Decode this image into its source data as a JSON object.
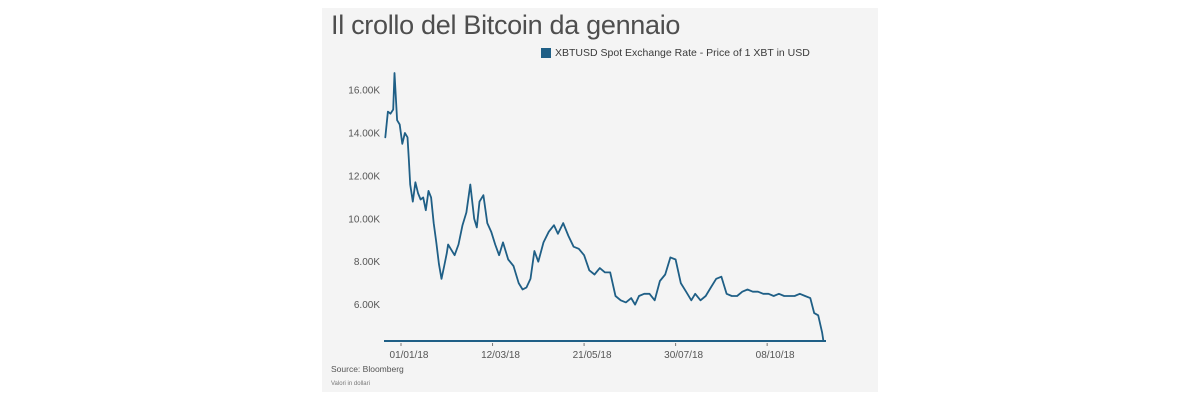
{
  "chart_data": {
    "type": "line",
    "title": "Il crollo del Bitcoin da gennaio",
    "legend_placement": "top-right",
    "series": [
      {
        "name": "XBTUSD Spot Exchange Rate - Price of 1 XBT in USD",
        "color": "#1f5f86",
        "x": [
          "2017-12-20",
          "2017-12-22",
          "2017-12-24",
          "2017-12-26",
          "2017-12-27",
          "2017-12-29",
          "2017-12-31",
          "2018-01-02",
          "2018-01-04",
          "2018-01-06",
          "2018-01-07",
          "2018-01-08",
          "2018-01-10",
          "2018-01-12",
          "2018-01-14",
          "2018-01-16",
          "2018-01-18",
          "2018-01-20",
          "2018-01-22",
          "2018-01-24",
          "2018-01-26",
          "2018-01-28",
          "2018-01-30",
          "2018-02-01",
          "2018-02-03",
          "2018-02-05",
          "2018-02-06",
          "2018-02-08",
          "2018-02-11",
          "2018-02-14",
          "2018-02-17",
          "2018-02-20",
          "2018-02-23",
          "2018-02-26",
          "2018-02-28",
          "2018-03-02",
          "2018-03-05",
          "2018-03-08",
          "2018-03-11",
          "2018-03-14",
          "2018-03-17",
          "2018-03-20",
          "2018-03-24",
          "2018-03-28",
          "2018-04-01",
          "2018-04-04",
          "2018-04-07",
          "2018-04-10",
          "2018-04-13",
          "2018-04-16",
          "2018-04-20",
          "2018-04-24",
          "2018-04-28",
          "2018-05-01",
          "2018-05-05",
          "2018-05-09",
          "2018-05-13",
          "2018-05-17",
          "2018-05-21",
          "2018-05-25",
          "2018-05-29",
          "2018-06-02",
          "2018-06-06",
          "2018-06-10",
          "2018-06-14",
          "2018-06-18",
          "2018-06-22",
          "2018-06-26",
          "2018-06-29",
          "2018-07-02",
          "2018-07-06",
          "2018-07-10",
          "2018-07-14",
          "2018-07-18",
          "2018-07-22",
          "2018-07-26",
          "2018-07-30",
          "2018-08-03",
          "2018-08-07",
          "2018-08-11",
          "2018-08-14",
          "2018-08-18",
          "2018-08-22",
          "2018-08-26",
          "2018-08-30",
          "2018-09-03",
          "2018-09-07",
          "2018-09-11",
          "2018-09-15",
          "2018-09-19",
          "2018-09-23",
          "2018-09-27",
          "2018-10-01",
          "2018-10-05",
          "2018-10-09",
          "2018-10-13",
          "2018-10-17",
          "2018-10-21",
          "2018-10-25",
          "2018-10-29",
          "2018-11-02",
          "2018-11-06",
          "2018-11-10",
          "2018-11-13",
          "2018-11-16",
          "2018-11-19",
          "2018-11-20"
        ],
        "values": [
          13800,
          15000,
          14900,
          15100,
          16800,
          14600,
          14400,
          13500,
          14000,
          13800,
          12800,
          11600,
          10800,
          11700,
          11200,
          10900,
          11000,
          10400,
          11300,
          11000,
          9800,
          8900,
          7900,
          7200,
          7800,
          8400,
          8800,
          8600,
          8300,
          8800,
          9700,
          10300,
          11600,
          10000,
          9600,
          10800,
          11100,
          9800,
          9400,
          8800,
          8300,
          8900,
          8100,
          7800,
          7000,
          6700,
          6800,
          7200,
          8500,
          8000,
          8900,
          9400,
          9700,
          9300,
          9800,
          9200,
          8700,
          8600,
          8300,
          7600,
          7400,
          7700,
          7500,
          7500,
          6400,
          6200,
          6100,
          6300,
          6000,
          6400,
          6500,
          6500,
          6200,
          7100,
          7400,
          8200,
          8100,
          7000,
          6600,
          6200,
          6500,
          6200,
          6400,
          6800,
          7200,
          7300,
          6500,
          6400,
          6400,
          6600,
          6700,
          6600,
          6600,
          6500,
          6500,
          6400,
          6500,
          6400,
          6400,
          6400,
          6500,
          6400,
          6300,
          5600,
          5500,
          4700,
          4300
        ]
      }
    ],
    "y_ticks": [
      "6.00K",
      "8.00K",
      "10.00K",
      "12.00K",
      "14.00K",
      "16.00K"
    ],
    "y_tick_values": [
      6000,
      8000,
      10000,
      12000,
      14000,
      16000
    ],
    "ylim": [
      4300,
      17500
    ],
    "x_ticks": [
      "01/01/18",
      "12/03/18",
      "21/05/18",
      "30/07/18",
      "08/10/18"
    ],
    "x_tick_values": [
      "2018-01-01",
      "2018-03-12",
      "2018-05-21",
      "2018-07-30",
      "2018-10-08"
    ],
    "xlim": [
      "2017-12-19",
      "2018-11-22"
    ],
    "grid": false,
    "source": "Source: Bloomberg",
    "note": "Valori in dollari"
  }
}
